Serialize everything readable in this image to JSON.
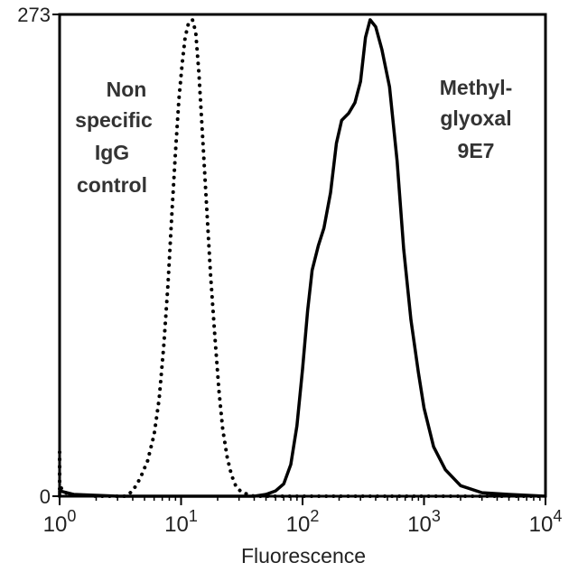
{
  "chart_data": {
    "type": "line",
    "xscale": "log",
    "xlabel": "Fluorescence",
    "ylabel": "",
    "xlim": [
      1,
      10000
    ],
    "ylim": [
      0,
      273
    ],
    "x_ticks": [
      {
        "value": 1,
        "base": "10",
        "exp": "0"
      },
      {
        "value": 10,
        "base": "10",
        "exp": "1"
      },
      {
        "value": 100,
        "base": "10",
        "exp": "2"
      },
      {
        "value": 1000,
        "base": "10",
        "exp": "3"
      },
      {
        "value": 10000,
        "base": "10",
        "exp": "4"
      }
    ],
    "y_ticks": [
      {
        "value": 0,
        "label": "0"
      },
      {
        "value": 273,
        "label": "273"
      }
    ],
    "grid": false,
    "series": [
      {
        "style": "dotted",
        "color": "#000000",
        "points": [
          [
            1.0,
            0
          ],
          [
            1.0,
            25
          ],
          [
            1.0,
            8
          ],
          [
            1.05,
            3
          ],
          [
            1.2,
            1
          ],
          [
            2.0,
            0
          ],
          [
            3.5,
            0
          ],
          [
            4.0,
            3
          ],
          [
            4.6,
            10
          ],
          [
            5.3,
            20
          ],
          [
            6.0,
            35
          ],
          [
            6.6,
            55
          ],
          [
            7.2,
            85
          ],
          [
            7.8,
            120
          ],
          [
            8.4,
            160
          ],
          [
            9.0,
            195
          ],
          [
            9.6,
            225
          ],
          [
            10.2,
            245
          ],
          [
            10.8,
            260
          ],
          [
            11.5,
            268
          ],
          [
            12.4,
            270
          ],
          [
            13.2,
            263
          ],
          [
            14.0,
            240
          ],
          [
            15.0,
            205
          ],
          [
            16.2,
            165
          ],
          [
            17.5,
            125
          ],
          [
            19.0,
            90
          ],
          [
            20.5,
            60
          ],
          [
            22.0,
            38
          ],
          [
            24.0,
            22
          ],
          [
            26.0,
            12
          ],
          [
            28.5,
            5
          ],
          [
            32.0,
            2
          ],
          [
            40.0,
            0
          ],
          [
            10000,
            0
          ]
        ]
      },
      {
        "style": "solid",
        "color": "#000000",
        "points": [
          [
            1.0,
            0
          ],
          [
            1.0,
            3
          ],
          [
            1.3,
            1
          ],
          [
            3.0,
            0
          ],
          [
            40.0,
            0
          ],
          [
            50.0,
            1
          ],
          [
            60.0,
            3
          ],
          [
            70.0,
            7
          ],
          [
            80.0,
            18
          ],
          [
            90.0,
            40
          ],
          [
            100.0,
            72
          ],
          [
            110.0,
            105
          ],
          [
            120.0,
            128
          ],
          [
            135.0,
            142
          ],
          [
            150.0,
            152
          ],
          [
            170.0,
            172
          ],
          [
            190.0,
            200
          ],
          [
            210.0,
            213
          ],
          [
            240.0,
            217
          ],
          [
            270.0,
            223
          ],
          [
            300.0,
            235
          ],
          [
            330.0,
            260
          ],
          [
            360.0,
            270
          ],
          [
            400.0,
            266
          ],
          [
            450.0,
            253
          ],
          [
            520.0,
            232
          ],
          [
            600.0,
            190
          ],
          [
            680.0,
            140
          ],
          [
            780.0,
            100
          ],
          [
            900.0,
            70
          ],
          [
            1000.0,
            50
          ],
          [
            1200.0,
            28
          ],
          [
            1500.0,
            15
          ],
          [
            2000.0,
            6
          ],
          [
            3000.0,
            2
          ],
          [
            5000.0,
            1
          ],
          [
            10000.0,
            0
          ]
        ]
      }
    ],
    "annotations": [
      {
        "id": "control",
        "lines": [
          "Non",
          "specific",
          "IgG",
          "control"
        ]
      },
      {
        "id": "antibody",
        "lines": [
          "Methyl-",
          "glyoxal",
          "9E7"
        ]
      }
    ]
  }
}
